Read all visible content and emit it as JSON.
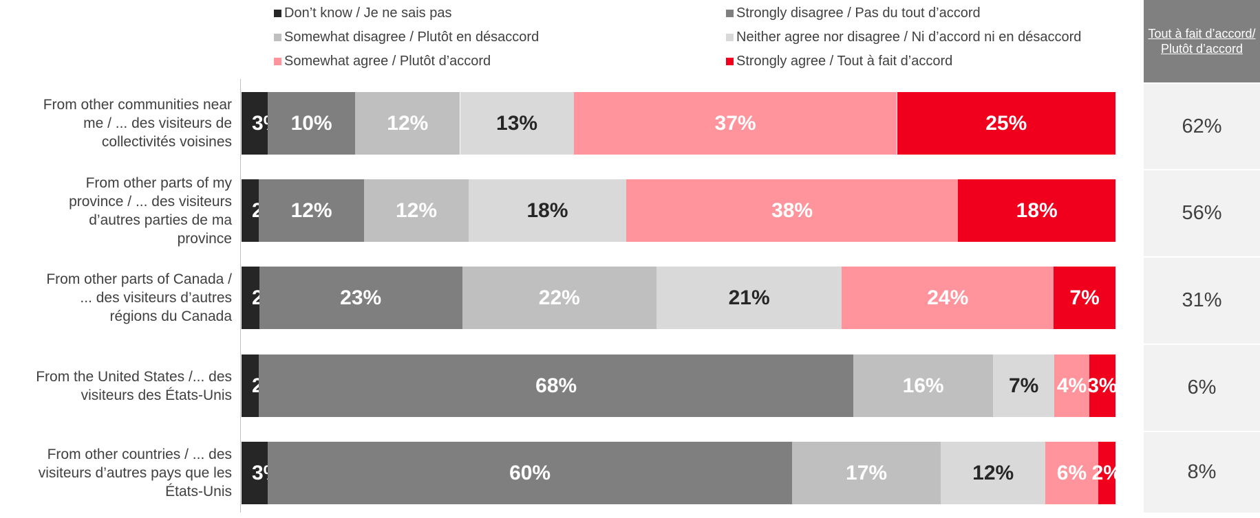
{
  "chart_data": {
    "type": "bar",
    "orientation": "horizontal",
    "stacked": true,
    "percent_scale": [
      0,
      100
    ],
    "legend_position": "top",
    "grid": false,
    "categories": [
      "From other communities near me / ... des visiteurs de collectivités voisines",
      "From other parts of my province / ... des visiteurs d’autres parties de ma province",
      "From other parts of Canada / ... des visiteurs d’autres régions du Canada",
      "From the United States /... des visiteurs des États-Unis",
      "From other countries / ... des visiteurs d’autres pays que les États-Unis"
    ],
    "category_lines": [
      [
        "From other communities near",
        "me / ... des visiteurs de",
        "collectivités voisines"
      ],
      [
        "From other parts of my",
        "province / ... des visiteurs",
        "d’autres parties de ma",
        "province"
      ],
      [
        "From other parts of Canada /",
        "... des visiteurs d’autres",
        "régions du Canada"
      ],
      [
        "From the United States /... des",
        "visiteurs des États-Unis"
      ],
      [
        "From other countries / ... des",
        "visiteurs d’autres pays que les",
        "États-Unis"
      ]
    ],
    "series": [
      {
        "name": "Don’t know / Je ne sais pas",
        "color": "#262626",
        "label_color": "#ffffff",
        "values": [
          3,
          2,
          2,
          2,
          3
        ]
      },
      {
        "name": "Strongly disagree / Pas du tout d’accord",
        "color": "#7f7f7f",
        "label_color": "#ffffff",
        "values": [
          10,
          12,
          23,
          68,
          60
        ]
      },
      {
        "name": "Somewhat disagree / Plutôt en désaccord",
        "color": "#bfbfbf",
        "label_color": "#ffffff",
        "values": [
          12,
          12,
          22,
          16,
          17
        ]
      },
      {
        "name": "Neither agree nor disagree / Ni d’accord ni en désaccord",
        "color": "#d9d9d9",
        "label_color": "#262626",
        "values": [
          13,
          18,
          21,
          7,
          12
        ]
      },
      {
        "name": "Somewhat agree / Plutôt d’accord",
        "color": "#ff949c",
        "label_color": "#ffffff",
        "values": [
          37,
          38,
          24,
          4,
          6
        ]
      },
      {
        "name": "Strongly agree / Tout à fait d’accord",
        "color": "#f0001c",
        "label_color": "#ffffff",
        "values": [
          25,
          18,
          7,
          3,
          2
        ]
      }
    ],
    "summary_column": {
      "header": "Tout à fait d’accord/ Plutôt d’accord",
      "values": [
        "62%",
        "56%",
        "31%",
        "6%",
        "8%"
      ]
    }
  }
}
